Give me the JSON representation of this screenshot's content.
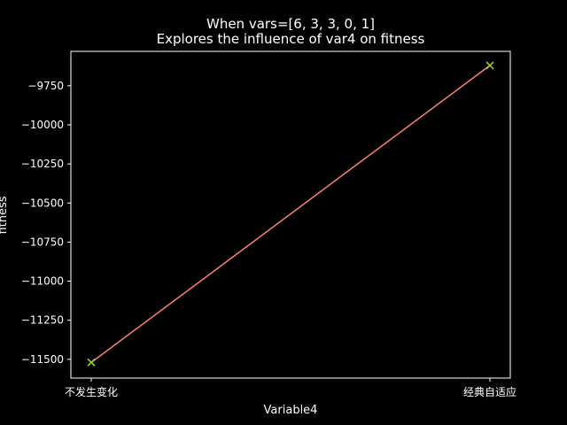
{
  "chart_data": {
    "type": "line",
    "title": "When vars=[6, 3, 3, 0, 1]",
    "subtitle": "Explores the influence of var4 on fitness",
    "xlabel": "Variable4",
    "ylabel": "fitness",
    "categories": [
      "不发生变化",
      "经典自适应"
    ],
    "series": [
      {
        "values": [
          -11520,
          -9620
        ]
      }
    ],
    "ylim": [
      -11620,
      -9530
    ],
    "yticks": [
      -11500,
      -11250,
      -11000,
      -10750,
      -10500,
      -10250,
      -10000,
      -9750
    ],
    "ytick_labels": [
      "−11500",
      "−11250",
      "−11000",
      "−10750",
      "−10500",
      "−10250",
      "−10000",
      "−9750"
    ],
    "grid": false,
    "colors": {
      "background": "#000000",
      "axes": "#ffffff",
      "line": "#fa8072",
      "marker": "#9acd32"
    }
  }
}
